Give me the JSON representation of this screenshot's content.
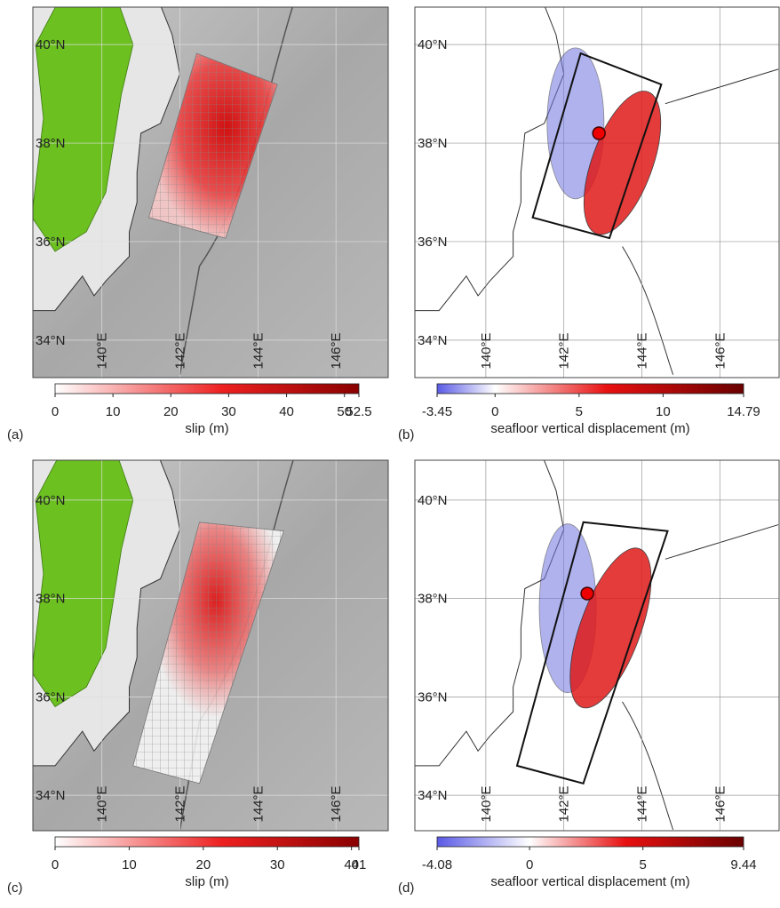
{
  "panels": [
    {
      "label": "(a)",
      "kind": "slip",
      "latlim": [
        33.24,
        40.76
      ],
      "lonlim": [
        138.23,
        147.34
      ],
      "lat_ticks": [
        {
          "value": 40,
          "label": "40°N"
        },
        {
          "value": 38,
          "label": "38°N"
        },
        {
          "value": 36,
          "label": "36°N"
        },
        {
          "value": 34,
          "label": "34°N"
        }
      ],
      "lon_ticks": [
        {
          "value": 140,
          "label": "140°E"
        },
        {
          "value": 142,
          "label": "142°E"
        },
        {
          "value": 144,
          "label": "144°E"
        },
        {
          "value": 146,
          "label": "146°E"
        }
      ],
      "colorbar": {
        "lim": [
          0,
          52.5
        ],
        "ticks": [
          0,
          10,
          20,
          30,
          40,
          50,
          52.5
        ],
        "title": "slip (m)"
      }
    },
    {
      "label": "(b)",
      "kind": "displacement",
      "latlim": [
        33.24,
        40.76
      ],
      "lonlim": [
        138.18,
        147.52
      ],
      "lat_ticks": [
        {
          "value": 40,
          "label": "40°N"
        },
        {
          "value": 38,
          "label": "38°N"
        },
        {
          "value": 36,
          "label": "36°N"
        },
        {
          "value": 34,
          "label": "34°N"
        }
      ],
      "lon_ticks": [
        {
          "value": 140,
          "label": "140°E"
        },
        {
          "value": 142,
          "label": "142°E"
        },
        {
          "value": 144,
          "label": "144°E"
        },
        {
          "value": 146,
          "label": "146°E"
        }
      ],
      "colorbar": {
        "lim": [
          -3.45,
          14.79
        ],
        "ticks": [
          -3.45,
          0,
          5,
          10,
          14.79
        ],
        "title": "seafloor vertical displacement (m)"
      }
    },
    {
      "label": "(c)",
      "kind": "slip",
      "latlim": [
        33.28,
        40.81
      ],
      "lonlim": [
        138.23,
        147.34
      ],
      "lat_ticks": [
        {
          "value": 40,
          "label": "40°N"
        },
        {
          "value": 38,
          "label": "38°N"
        },
        {
          "value": 36,
          "label": "36°N"
        },
        {
          "value": 34,
          "label": "34°N"
        }
      ],
      "lon_ticks": [
        {
          "value": 140,
          "label": "140°E"
        },
        {
          "value": 142,
          "label": "142°E"
        },
        {
          "value": 144,
          "label": "144°E"
        },
        {
          "value": 146,
          "label": "146°E"
        }
      ],
      "colorbar": {
        "lim": [
          0,
          41
        ],
        "ticks": [
          0,
          10,
          20,
          30,
          40,
          41
        ],
        "title": "slip (m)"
      }
    },
    {
      "label": "(d)",
      "kind": "displacement",
      "latlim": [
        33.28,
        40.81
      ],
      "lonlim": [
        138.18,
        147.52
      ],
      "lat_ticks": [
        {
          "value": 40,
          "label": "40°N"
        },
        {
          "value": 38,
          "label": "38°N"
        },
        {
          "value": 36,
          "label": "36°N"
        },
        {
          "value": 34,
          "label": "34°N"
        }
      ],
      "lon_ticks": [
        {
          "value": 140,
          "label": "140°E"
        },
        {
          "value": 142,
          "label": "142°E"
        },
        {
          "value": 144,
          "label": "144°E"
        },
        {
          "value": 146,
          "label": "146°E"
        }
      ],
      "colorbar": {
        "lim": [
          -4.08,
          9.44
        ],
        "ticks": [
          -4.08,
          0,
          5,
          9.44
        ],
        "title": "seafloor vertical displacement (m)"
      }
    }
  ]
}
